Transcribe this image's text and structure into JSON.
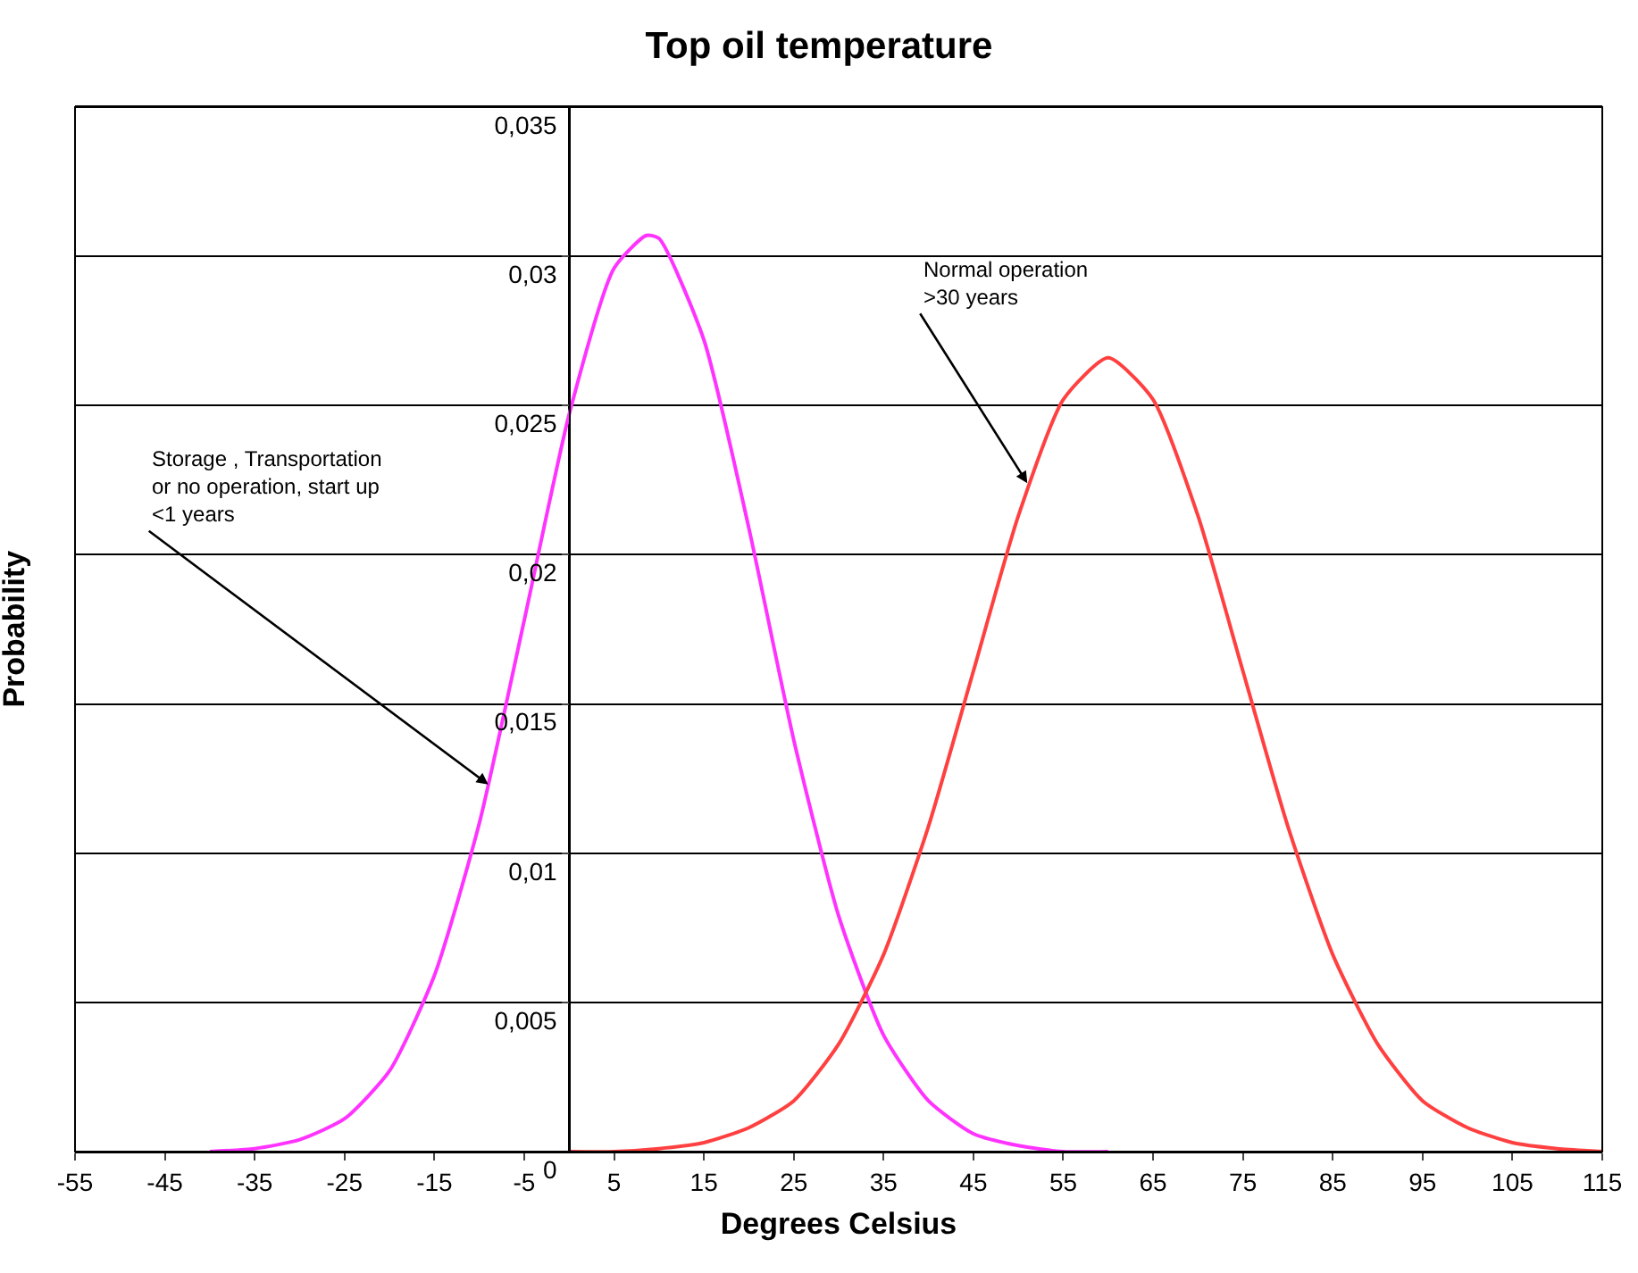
{
  "chart_data": {
    "type": "line",
    "title": "Top oil temperature",
    "xlabel": "Degrees Celsius",
    "ylabel": "Probability",
    "series": [
      {
        "color": "#ff33ff",
        "x": [
          -40,
          -35,
          -30,
          -25,
          -20,
          -15,
          -10,
          -5,
          0,
          5,
          8.6,
          10,
          15,
          20,
          25,
          30,
          35,
          40,
          45,
          50,
          55,
          60
        ],
        "values": [
          0,
          0.0001,
          0.0004,
          0.0011,
          0.0027,
          0.0059,
          0.011,
          0.0178,
          0.0247,
          0.0296,
          0.0307,
          0.0306,
          0.0272,
          0.0209,
          0.0138,
          0.0079,
          0.0039,
          0.0017,
          0.0006,
          0.0002,
          0,
          0
        ]
      },
      {
        "color": "#ff4040",
        "x": [
          0,
          5,
          10,
          15,
          20,
          25,
          30,
          35,
          40,
          45,
          50,
          55,
          60,
          65,
          70,
          75,
          80,
          85,
          90,
          95,
          100,
          105,
          110,
          115
        ],
        "values": [
          0,
          0,
          0.0001,
          0.0003,
          0.0008,
          0.0017,
          0.0036,
          0.0066,
          0.0109,
          0.0161,
          0.0213,
          0.0252,
          0.0266,
          0.0252,
          0.0213,
          0.0161,
          0.0109,
          0.0066,
          0.0036,
          0.0017,
          0.0008,
          0.0003,
          0.0001,
          0
        ]
      }
    ],
    "xlim": [
      -55,
      115
    ],
    "xticks": [
      -55,
      -45,
      -35,
      -25,
      -15,
      -5,
      5,
      15,
      25,
      35,
      45,
      55,
      65,
      75,
      85,
      95,
      105,
      115
    ],
    "ylim": [
      0,
      0.035
    ],
    "yticks": [
      0,
      {
        "value": 0.005,
        "label": "0,005"
      },
      {
        "value": 0.01,
        "label": "0,01"
      },
      {
        "value": 0.015,
        "label": "0,015"
      },
      {
        "value": 0.02,
        "label": "0,02"
      },
      {
        "value": 0.025,
        "label": "0,025"
      },
      {
        "value": 0.03,
        "label": "0,03"
      },
      {
        "value": 0.035,
        "label": "0,035"
      }
    ],
    "annotations": [
      {
        "text": "Normal operation\n>30 years",
        "x": 51,
        "y": 0.0224
      },
      {
        "text": "Storage , Transportation\nor no operation, start up\n<1 years",
        "x": -9,
        "y": 0.0123
      }
    ],
    "grid": "y",
    "marker": "none",
    "line_style": "solid"
  }
}
